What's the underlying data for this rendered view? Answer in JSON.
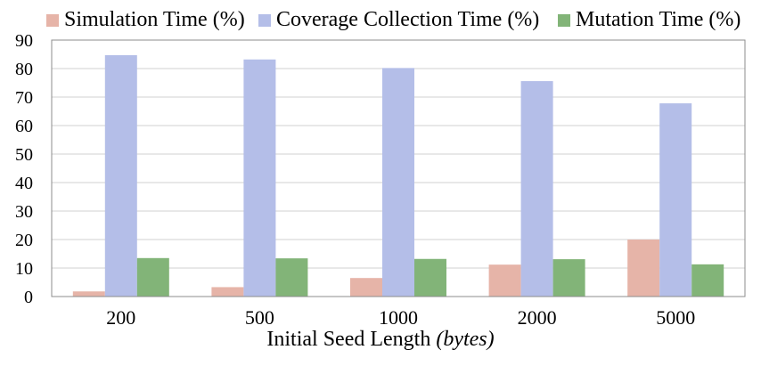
{
  "chart_data": {
    "type": "bar",
    "title": "",
    "xlabel": "Initial Seed Length",
    "xlabel_unit": "(bytes)",
    "ylabel": "",
    "ylim": [
      0,
      90
    ],
    "yticks": [
      0,
      10,
      20,
      30,
      40,
      50,
      60,
      70,
      80,
      90
    ],
    "grid": true,
    "legend_position": "top",
    "categories": [
      "200",
      "500",
      "1000",
      "2000",
      "5000"
    ],
    "series": [
      {
        "name": "Simulation Time (%)",
        "color": "#e6b4a8",
        "values": [
          1.8,
          3.3,
          6.5,
          11.2,
          20.0
        ]
      },
      {
        "name": "Coverage Collection Time (%)",
        "color": "#b4bee8",
        "values": [
          84.7,
          83.2,
          80.2,
          75.6,
          67.8
        ]
      },
      {
        "name": "Mutation Time (%)",
        "color": "#82b478",
        "values": [
          13.5,
          13.4,
          13.2,
          13.1,
          11.3
        ]
      }
    ]
  }
}
